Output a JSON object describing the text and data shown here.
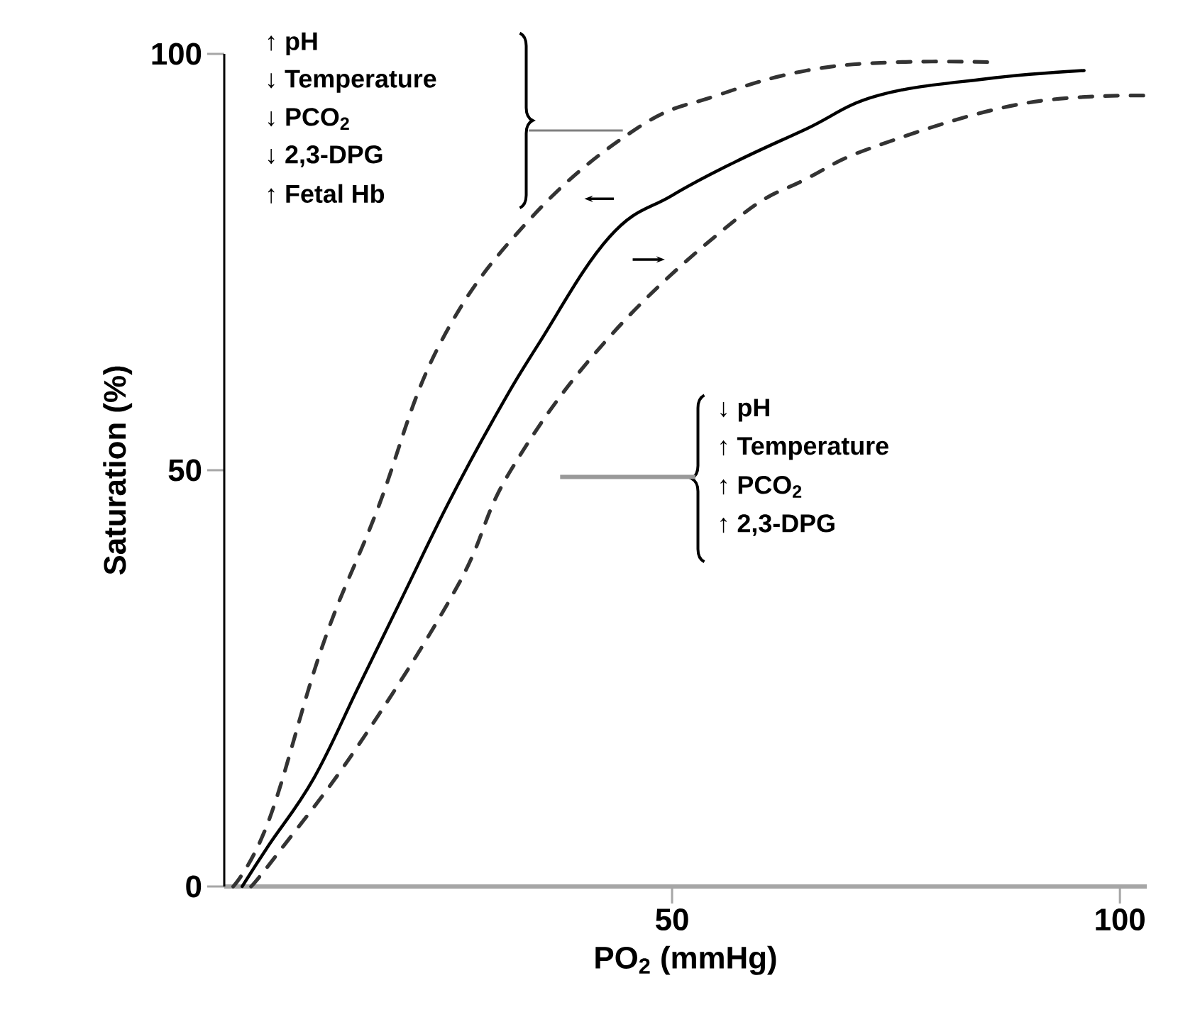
{
  "chart_data": {
    "type": "line",
    "xlabel": "PO$_{2}$ (mmHg)",
    "ylabel": "Saturation (%)",
    "xlim": [
      0,
      103
    ],
    "ylim": [
      0,
      100
    ],
    "xticks": [
      50,
      100
    ],
    "yticks": [
      0,
      50,
      100
    ],
    "grid": false,
    "marker": "none",
    "series": [
      {
        "color": "#000000",
        "line_style": "solid",
        "x": [
          2,
          5,
          10,
          15,
          20,
          25,
          30,
          35,
          43,
          50,
          57,
          65,
          73,
          85,
          96
        ],
        "values": [
          0,
          5,
          13,
          24,
          35,
          46,
          56,
          65,
          78,
          83,
          87,
          91,
          95,
          97,
          98
        ]
      },
      {
        "color": "#333333",
        "line_style": "dashed",
        "x": [
          1,
          5,
          11,
          17,
          24,
          34,
          46,
          55,
          65,
          75,
          86
        ],
        "values": [
          0,
          8,
          29,
          45,
          65,
          80,
          91,
          95,
          98,
          99,
          99
        ]
      },
      {
        "color": "#333333",
        "line_style": "dashed",
        "x": [
          3,
          6,
          15,
          26,
          32,
          43,
          57,
          65,
          73,
          89,
          103
        ],
        "values": [
          0,
          4,
          17,
          36,
          50,
          66,
          80,
          85,
          89,
          94,
          95
        ]
      }
    ],
    "annotations": [
      "↑ pH",
      "↓ Temperature",
      "↓ PCO$_{2}$",
      "↓ 2,3-DPG",
      "↑ Fetal Hb",
      "↓ pH",
      "↑ Temperature",
      "↑ PCO$_{2}$",
      "↑ 2,3-DPG"
    ]
  }
}
